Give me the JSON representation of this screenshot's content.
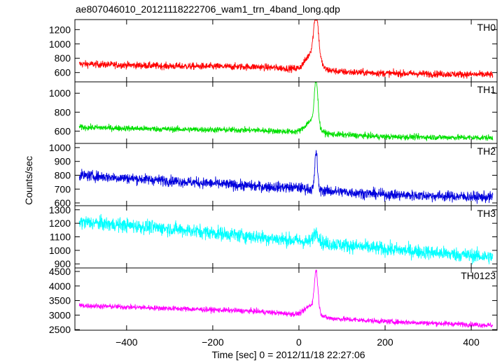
{
  "chart_data": {
    "type": "line",
    "title": "ae807046010_20121118222706_wam1_trn_4band_long.qdp",
    "xlabel": "Time [sec] 0 = 2012/11/18 22:27:06",
    "ylabel": "Counts/sec",
    "xlim": [
      -520,
      460
    ],
    "x_ticks": [
      -400,
      -200,
      0,
      200,
      400
    ],
    "x_tick_labels": [
      "−400",
      "−200",
      "0",
      "200",
      "400"
    ],
    "data_xrange": [
      -510,
      450
    ],
    "grid": false,
    "panels": [
      {
        "name": "TH0",
        "color": "#ff0000",
        "ylim": [
          470,
          1340
        ],
        "y_ticks": [
          600,
          800,
          1000,
          1200
        ],
        "baseline": [
          [
            -510,
            720
          ],
          [
            -300,
            690
          ],
          [
            -100,
            680
          ],
          [
            0,
            650
          ],
          [
            20,
            700
          ],
          [
            40,
            800
          ],
          [
            60,
            640
          ],
          [
            100,
            610
          ],
          [
            200,
            590
          ],
          [
            450,
            570
          ]
        ],
        "noise": 70,
        "bumps": [
          [
            30,
            14,
            150
          ],
          [
            40,
            5,
            550
          ]
        ]
      },
      {
        "name": "TH1",
        "color": "#00e000",
        "ylim": [
          470,
          1120
        ],
        "y_ticks": [
          600,
          800,
          1000
        ],
        "baseline": [
          [
            -510,
            640
          ],
          [
            -300,
            620
          ],
          [
            -100,
            610
          ],
          [
            0,
            590
          ],
          [
            60,
            570
          ],
          [
            200,
            540
          ],
          [
            450,
            530
          ]
        ],
        "noise": 45,
        "bumps": [
          [
            30,
            14,
            130
          ],
          [
            40,
            4,
            480
          ]
        ]
      },
      {
        "name": "TH2",
        "color": "#0000dd",
        "ylim": [
          580,
          1030
        ],
        "y_ticks": [
          600,
          700,
          800,
          900,
          1000
        ],
        "baseline": [
          [
            -510,
            800
          ],
          [
            -300,
            760
          ],
          [
            -100,
            720
          ],
          [
            0,
            710
          ],
          [
            50,
            690
          ],
          [
            200,
            660
          ],
          [
            450,
            640
          ]
        ],
        "noise": 55,
        "bumps": [
          [
            40,
            3,
            280
          ]
        ]
      },
      {
        "name": "TH3",
        "color": "#00ffff",
        "ylim": [
          870,
          1330
        ],
        "y_ticks": [
          900,
          1000,
          1100,
          1200,
          1300
        ],
        "baseline": [
          [
            -510,
            1210
          ],
          [
            -300,
            1160
          ],
          [
            -100,
            1100
          ],
          [
            0,
            1070
          ],
          [
            200,
            1010
          ],
          [
            450,
            950
          ]
        ],
        "noise": 75,
        "bumps": [
          [
            40,
            6,
            80
          ]
        ]
      },
      {
        "name": "TH0123",
        "color": "#ff00ff",
        "ylim": [
          2480,
          4620
        ],
        "y_ticks": [
          2500,
          3000,
          3500,
          4000,
          4500
        ],
        "baseline": [
          [
            -510,
            3330
          ],
          [
            -300,
            3230
          ],
          [
            -100,
            3130
          ],
          [
            0,
            3020
          ],
          [
            60,
            2900
          ],
          [
            200,
            2780
          ],
          [
            450,
            2650
          ]
        ],
        "noise": 130,
        "bumps": [
          [
            30,
            14,
            380
          ],
          [
            40,
            4,
            1300
          ]
        ]
      }
    ]
  }
}
